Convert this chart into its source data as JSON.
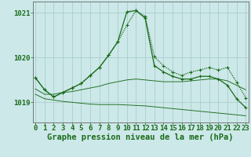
{
  "title": "Graphe pression niveau de la mer (hPa)",
  "xlabel_hours": [
    0,
    1,
    2,
    3,
    4,
    5,
    6,
    7,
    8,
    9,
    10,
    11,
    12,
    13,
    14,
    15,
    16,
    17,
    18,
    19,
    20,
    21,
    22,
    23
  ],
  "line1_y": [
    1019.55,
    1019.28,
    1019.12,
    1019.22,
    1019.32,
    1019.42,
    1019.6,
    1019.78,
    1020.05,
    1020.35,
    1020.72,
    1021.05,
    1020.92,
    1020.02,
    1019.82,
    1019.68,
    1019.6,
    1019.68,
    1019.72,
    1019.78,
    1019.72,
    1019.78,
    1019.45,
    1019.1
  ],
  "line2_y": [
    1019.55,
    1019.28,
    1019.12,
    1019.22,
    1019.32,
    1019.42,
    1019.6,
    1019.78,
    1020.05,
    1020.35,
    1021.02,
    1021.05,
    1020.88,
    1019.82,
    1019.68,
    1019.58,
    1019.52,
    1019.52,
    1019.58,
    1019.58,
    1019.52,
    1019.38,
    1019.08,
    1018.88
  ],
  "line3_y": [
    1019.3,
    1019.18,
    1019.18,
    1019.22,
    1019.24,
    1019.28,
    1019.32,
    1019.36,
    1019.42,
    1019.46,
    1019.5,
    1019.52,
    1019.5,
    1019.48,
    1019.46,
    1019.46,
    1019.46,
    1019.48,
    1019.5,
    1019.52,
    1019.52,
    1019.48,
    1019.38,
    1019.28
  ],
  "line4_y": [
    1019.18,
    1019.08,
    1019.05,
    1019.02,
    1019.0,
    1018.98,
    1018.96,
    1018.95,
    1018.95,
    1018.95,
    1018.94,
    1018.93,
    1018.92,
    1018.9,
    1018.88,
    1018.86,
    1018.84,
    1018.82,
    1018.8,
    1018.78,
    1018.76,
    1018.74,
    1018.72,
    1018.7
  ],
  "line_color": "#1a6b1a",
  "background_color": "#cce8e8",
  "grid_color": "#aacece",
  "ylim": [
    1018.55,
    1021.25
  ],
  "yticks": [
    1019,
    1020,
    1021
  ],
  "tick_fontsize": 6.5,
  "title_fontsize": 7.5
}
